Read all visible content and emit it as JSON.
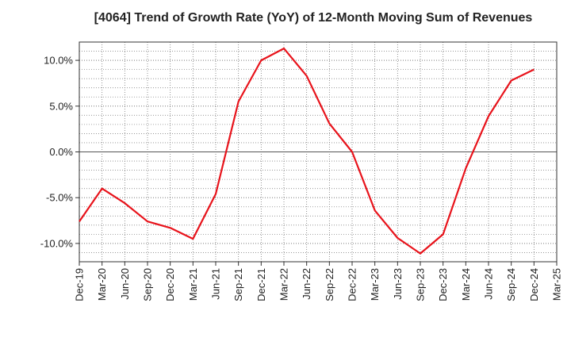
{
  "chart_data": {
    "type": "line",
    "title": "[4064]  Trend of Growth Rate (YoY) of 12-Month Moving Sum of Revenues",
    "xlabel": "",
    "ylabel": "",
    "x": [
      "Dec-19",
      "Mar-20",
      "Jun-20",
      "Sep-20",
      "Dec-20",
      "Mar-21",
      "Jun-21",
      "Sep-21",
      "Dec-21",
      "Mar-22",
      "Jun-22",
      "Sep-22",
      "Dec-22",
      "Mar-23",
      "Jun-23",
      "Sep-23",
      "Dec-23",
      "Mar-24",
      "Jun-24",
      "Sep-24",
      "Dec-24",
      "Mar-25"
    ],
    "series": [
      {
        "color": "#e8131b",
        "values": [
          -7.6,
          -4.0,
          -5.6,
          -7.6,
          -8.3,
          -9.5,
          -4.6,
          5.5,
          10.0,
          11.3,
          8.3,
          3.1,
          0.0,
          -6.4,
          -9.4,
          -11.1,
          -9.0,
          -1.8,
          3.9,
          7.8,
          9.0,
          null
        ]
      }
    ],
    "yticks": [
      "10.0%",
      "5.0%",
      "0.0%",
      "-5.0%",
      "-10.0%"
    ],
    "ytick_values": [
      10,
      5,
      0,
      -5,
      -10
    ],
    "ylim": [
      -12,
      12
    ],
    "grid": true,
    "legend": "none"
  }
}
